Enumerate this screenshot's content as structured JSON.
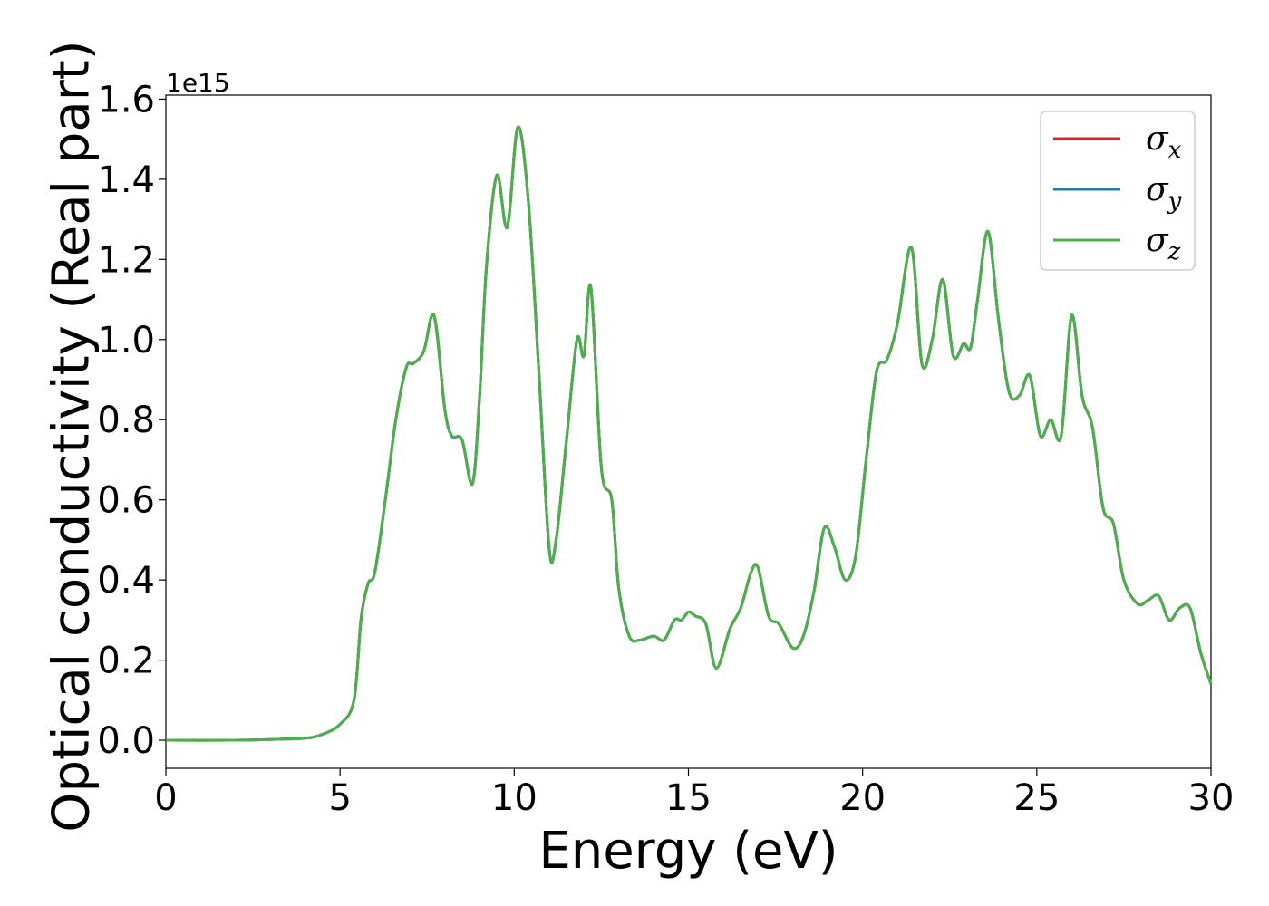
{
  "chart_data": {
    "type": "line",
    "title": "",
    "xlabel": "Energy (eV)",
    "ylabel": "Optical conductivity (Real part)",
    "y_offset_label": "1e15",
    "xlim": [
      0,
      30
    ],
    "ylim": [
      -0.07,
      1.61
    ],
    "xticks": [
      0,
      5,
      10,
      15,
      20,
      25,
      30
    ],
    "xtick_labels": [
      "0",
      "5",
      "10",
      "15",
      "20",
      "25",
      "30"
    ],
    "yticks": [
      0.0,
      0.2,
      0.4,
      0.6,
      0.8,
      1.0,
      1.2,
      1.4,
      1.6
    ],
    "ytick_labels": [
      "0.0",
      "0.2",
      "0.4",
      "0.6",
      "0.8",
      "1.0",
      "1.2",
      "1.4",
      "1.6"
    ],
    "grid": false,
    "legend_position": "top-right",
    "series": [
      {
        "name": "σ",
        "subscript": "x",
        "color": "#d62728",
        "values_same_as": "σz"
      },
      {
        "name": "σ",
        "subscript": "y",
        "color": "#1f77b4",
        "values_same_as": "σz"
      },
      {
        "name": "σ",
        "subscript": "z",
        "color": "#4daf4a"
      }
    ],
    "x": [
      0,
      2,
      3,
      4,
      4.5,
      5,
      5.4,
      5.6,
      5.8,
      6.0,
      6.3,
      6.6,
      6.9,
      7.1,
      7.4,
      7.7,
      8.0,
      8.2,
      8.5,
      8.8,
      9.0,
      9.2,
      9.5,
      9.8,
      10.1,
      10.4,
      10.7,
      11.0,
      11.2,
      11.5,
      11.8,
      12.0,
      12.2,
      12.5,
      12.8,
      13.0,
      13.3,
      13.6,
      14.0,
      14.3,
      14.6,
      14.8,
      15.0,
      15.2,
      15.5,
      15.8,
      16.2,
      16.5,
      16.8,
      17.0,
      17.3,
      17.6,
      18.0,
      18.3,
      18.6,
      18.9,
      19.2,
      19.5,
      19.8,
      20.1,
      20.4,
      20.7,
      21.0,
      21.4,
      21.7,
      22.0,
      22.3,
      22.6,
      22.9,
      23.1,
      23.3,
      23.6,
      23.9,
      24.2,
      24.5,
      24.8,
      25.1,
      25.4,
      25.7,
      26.0,
      26.3,
      26.6,
      26.9,
      27.2,
      27.5,
      27.9,
      28.2,
      28.5,
      28.8,
      29.1,
      29.4,
      29.7,
      30.0
    ],
    "y": [
      0.0,
      0.0,
      0.002,
      0.005,
      0.015,
      0.04,
      0.1,
      0.3,
      0.39,
      0.42,
      0.6,
      0.8,
      0.93,
      0.94,
      0.97,
      1.06,
      0.83,
      0.76,
      0.75,
      0.64,
      0.85,
      1.18,
      1.41,
      1.28,
      1.53,
      1.35,
      0.93,
      0.48,
      0.5,
      0.75,
      1.0,
      0.96,
      1.13,
      0.68,
      0.6,
      0.38,
      0.26,
      0.25,
      0.26,
      0.25,
      0.3,
      0.3,
      0.32,
      0.31,
      0.29,
      0.18,
      0.28,
      0.33,
      0.42,
      0.43,
      0.31,
      0.29,
      0.23,
      0.26,
      0.37,
      0.53,
      0.48,
      0.4,
      0.46,
      0.7,
      0.92,
      0.95,
      1.04,
      1.23,
      0.94,
      1.0,
      1.15,
      0.96,
      0.99,
      0.98,
      1.1,
      1.27,
      1.05,
      0.87,
      0.86,
      0.91,
      0.76,
      0.8,
      0.76,
      1.06,
      0.86,
      0.78,
      0.58,
      0.54,
      0.4,
      0.34,
      0.35,
      0.36,
      0.3,
      0.33,
      0.33,
      0.22,
      0.14
    ]
  }
}
